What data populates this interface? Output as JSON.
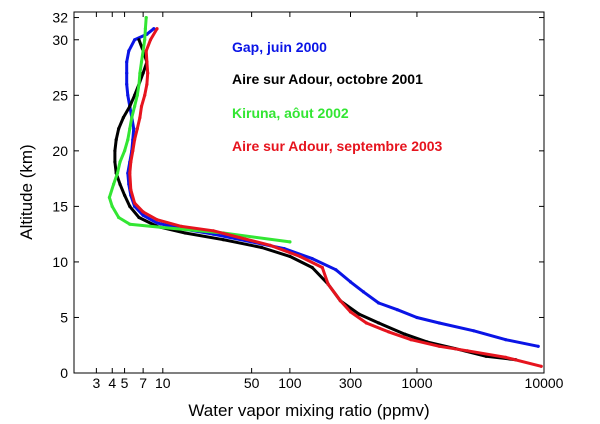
{
  "chart_data": {
    "type": "scatter",
    "title": "",
    "xlabel": "Water vapor mixing ratio (ppmv)",
    "ylabel": "Altitude (km)",
    "xscale": "log",
    "xlim": [
      2,
      10000
    ],
    "ylim": [
      0,
      32.5
    ],
    "grid": false,
    "legend_placement": "upper-right, text labels colored by series",
    "x_ticks": [
      3,
      4,
      5,
      7,
      10,
      50,
      100,
      300,
      1000,
      10000
    ],
    "x_tick_labels": [
      "3",
      "4",
      "5",
      "7",
      "10",
      "50",
      "100",
      "300",
      "1000",
      "10000"
    ],
    "y_ticks": [
      0,
      5,
      10,
      15,
      20,
      25,
      30,
      32
    ],
    "y_tick_labels": [
      "0",
      "5",
      "10",
      "15",
      "20",
      "25",
      "30",
      "32"
    ],
    "series": [
      {
        "name": "Gap, juin 2000",
        "color": "#0a14e6",
        "points": [
          [
            9000,
            2.4
          ],
          [
            5000,
            3
          ],
          [
            2800,
            3.8
          ],
          [
            1500,
            4.5
          ],
          [
            1000,
            5
          ],
          [
            700,
            5.7
          ],
          [
            500,
            6.3
          ],
          [
            380,
            7.3
          ],
          [
            300,
            8.2
          ],
          [
            230,
            9.3
          ],
          [
            150,
            10.3
          ],
          [
            90,
            11.2
          ],
          [
            50,
            11.8
          ],
          [
            25,
            12.5
          ],
          [
            14,
            13
          ],
          [
            9,
            13.5
          ],
          [
            7,
            14.2
          ],
          [
            6,
            15
          ],
          [
            5.6,
            16
          ],
          [
            5.4,
            17
          ],
          [
            5.3,
            18
          ],
          [
            5.5,
            19
          ],
          [
            5.7,
            20
          ],
          [
            5.8,
            21
          ],
          [
            5.9,
            22
          ],
          [
            5.7,
            23
          ],
          [
            5.5,
            24
          ],
          [
            5.3,
            25
          ],
          [
            5.2,
            26
          ],
          [
            5.2,
            27
          ],
          [
            5.2,
            28
          ],
          [
            5.4,
            29
          ],
          [
            6,
            30
          ],
          [
            7.5,
            30.5
          ],
          [
            8.5,
            31
          ]
        ]
      },
      {
        "name": "Aire sur Adour, octobre 2001",
        "color": "#000000",
        "points": [
          [
            6000,
            1.2
          ],
          [
            3500,
            1.5
          ],
          [
            2000,
            2.2
          ],
          [
            1200,
            2.8
          ],
          [
            800,
            3.5
          ],
          [
            500,
            4.5
          ],
          [
            350,
            5.3
          ],
          [
            250,
            6.5
          ],
          [
            200,
            8
          ],
          [
            150,
            9.5
          ],
          [
            100,
            10.5
          ],
          [
            60,
            11.3
          ],
          [
            30,
            12
          ],
          [
            15,
            12.6
          ],
          [
            9,
            13.2
          ],
          [
            6.5,
            14
          ],
          [
            5.5,
            15
          ],
          [
            5,
            16
          ],
          [
            4.6,
            17
          ],
          [
            4.3,
            18
          ],
          [
            4.2,
            19
          ],
          [
            4.2,
            20
          ],
          [
            4.3,
            21
          ],
          [
            4.5,
            22
          ],
          [
            4.9,
            23
          ],
          [
            5.5,
            24
          ],
          [
            6,
            25
          ],
          [
            6.5,
            26
          ],
          [
            7,
            27
          ],
          [
            7.5,
            28
          ],
          [
            7,
            29
          ],
          [
            6.5,
            30
          ]
        ]
      },
      {
        "name": "Kiruna, aôut 2002",
        "color": "#33e633",
        "points": [
          [
            100,
            11.8
          ],
          [
            30,
            12.6
          ],
          [
            10,
            13.1
          ],
          [
            5.5,
            13.4
          ],
          [
            4.5,
            14
          ],
          [
            4,
            15
          ],
          [
            3.8,
            15.8
          ],
          [
            4.1,
            17
          ],
          [
            4.4,
            18
          ],
          [
            4.6,
            19
          ],
          [
            5,
            20
          ],
          [
            5.3,
            21
          ],
          [
            5.5,
            22
          ],
          [
            5.7,
            23
          ],
          [
            6,
            24
          ],
          [
            6.3,
            25
          ],
          [
            6.5,
            26
          ],
          [
            6.6,
            27
          ],
          [
            6.8,
            28
          ],
          [
            7,
            29
          ],
          [
            7.2,
            30
          ],
          [
            7.3,
            31
          ],
          [
            7.4,
            32
          ]
        ]
      },
      {
        "name": "Aire sur Adour, septembre 2003",
        "color": "#e6141e",
        "points": [
          [
            9500,
            0.6
          ],
          [
            5000,
            1.4
          ],
          [
            2500,
            2
          ],
          [
            1500,
            2.4
          ],
          [
            900,
            3
          ],
          [
            600,
            3.7
          ],
          [
            400,
            4.5
          ],
          [
            300,
            5.5
          ],
          [
            250,
            6.5
          ],
          [
            200,
            8
          ],
          [
            180,
            9.5
          ],
          [
            120,
            10.5
          ],
          [
            70,
            11.5
          ],
          [
            40,
            12.2
          ],
          [
            25,
            12.8
          ],
          [
            14,
            13.2
          ],
          [
            9,
            13.8
          ],
          [
            7,
            14.5
          ],
          [
            6,
            15.3
          ],
          [
            5.6,
            16.5
          ],
          [
            5.5,
            18
          ],
          [
            5.6,
            19
          ],
          [
            5.8,
            20
          ],
          [
            6,
            21
          ],
          [
            6.3,
            22
          ],
          [
            6.6,
            23
          ],
          [
            6.8,
            24
          ],
          [
            7.2,
            25
          ],
          [
            7.5,
            26
          ],
          [
            7.6,
            27
          ],
          [
            7.5,
            28
          ],
          [
            7.4,
            29
          ],
          [
            8,
            30
          ],
          [
            9,
            31
          ]
        ]
      }
    ]
  }
}
